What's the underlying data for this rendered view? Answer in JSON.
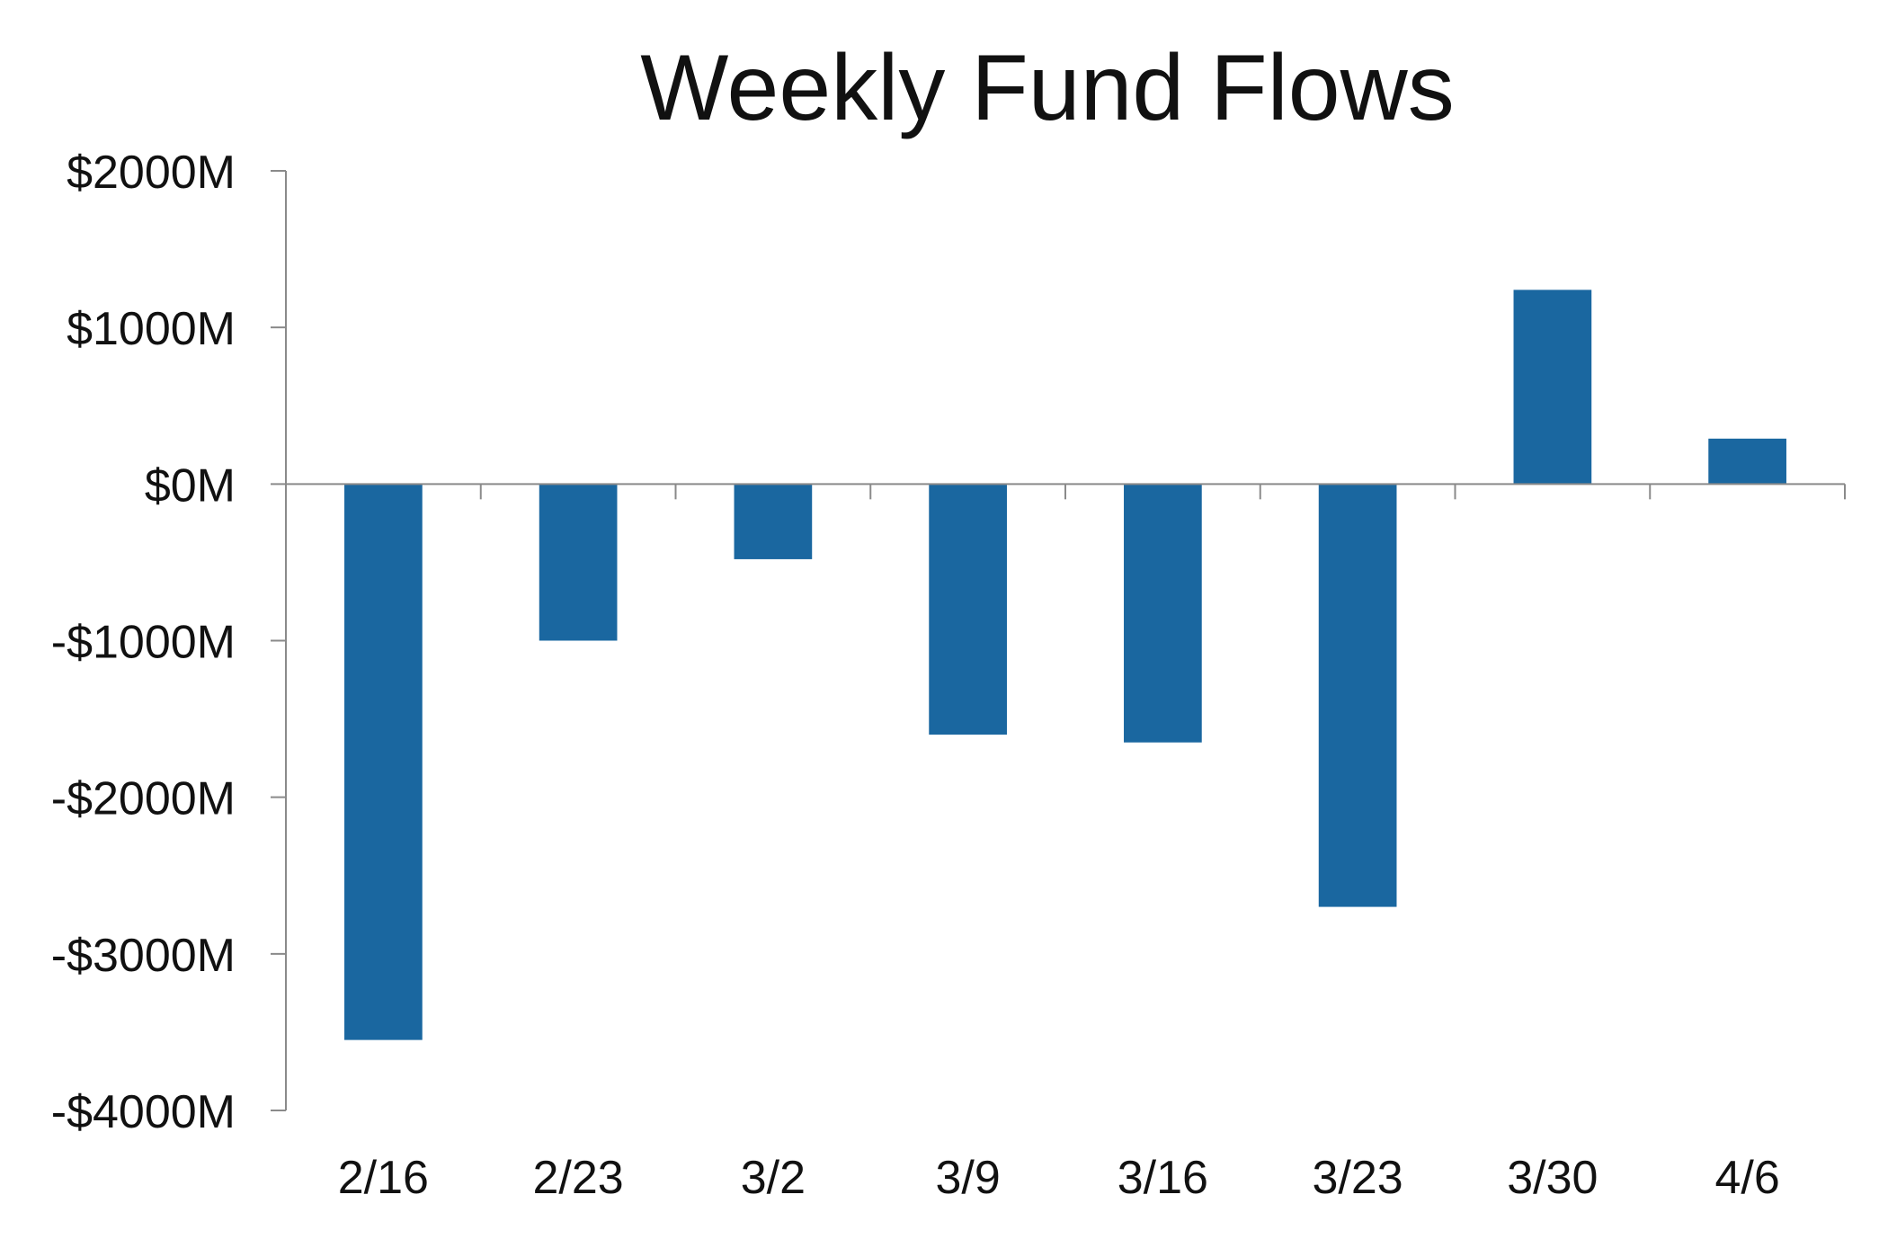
{
  "chart_data": {
    "type": "bar",
    "title": "Weekly Fund Flows",
    "xlabel": "",
    "ylabel": "",
    "categories": [
      "2/16",
      "2/23",
      "3/2",
      "3/9",
      "3/16",
      "3/23",
      "3/30",
      "4/6"
    ],
    "values": [
      -3550,
      -1000,
      -480,
      -1600,
      -1650,
      -2700,
      1240,
      290
    ],
    "ylim": [
      -4000,
      2000
    ],
    "yticks": [
      2000,
      1000,
      0,
      -1000,
      -2000,
      -3000,
      -4000
    ],
    "ytick_labels": [
      "$2000M",
      "$1000M",
      "$0M",
      "-$1000M",
      "-$2000M",
      "-$3000M",
      "-$4000M"
    ],
    "grid": false,
    "legend": "none",
    "bar_color": "#1a67a0",
    "axis_color": "#8a8a8a"
  }
}
